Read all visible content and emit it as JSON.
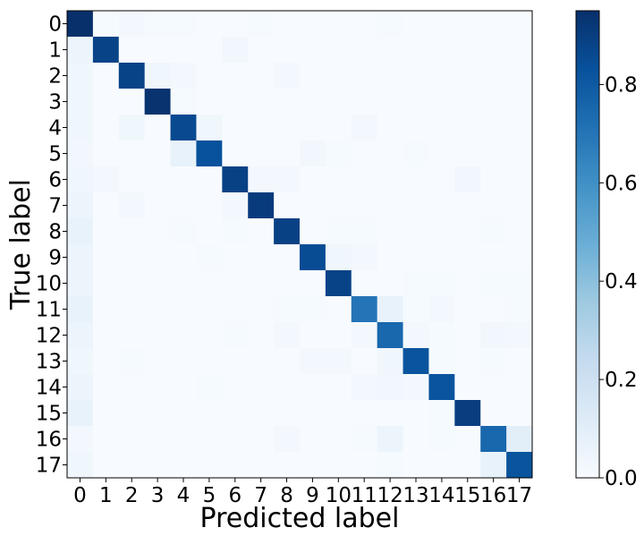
{
  "chart_data": {
    "type": "heatmap",
    "title": "",
    "xlabel": "Predicted label",
    "ylabel": "True label",
    "x_categories": [
      "0",
      "1",
      "2",
      "3",
      "4",
      "5",
      "6",
      "7",
      "8",
      "9",
      "10",
      "11",
      "12",
      "13",
      "14",
      "15",
      "16",
      "17"
    ],
    "y_categories": [
      "0",
      "1",
      "2",
      "3",
      "4",
      "5",
      "6",
      "7",
      "8",
      "9",
      "10",
      "11",
      "12",
      "13",
      "14",
      "15",
      "16",
      "17"
    ],
    "matrix": [
      [
        0.95,
        0.01,
        0.02,
        0.01,
        0.01,
        0.0,
        0.0,
        0.01,
        0.0,
        0.0,
        0.0,
        0.0,
        0.01,
        0.0,
        0.0,
        0.0,
        0.0,
        0.0
      ],
      [
        0.05,
        0.88,
        0.0,
        0.0,
        0.0,
        0.0,
        0.03,
        0.0,
        0.0,
        0.0,
        0.0,
        0.0,
        0.0,
        0.0,
        0.0,
        0.0,
        0.0,
        0.0
      ],
      [
        0.04,
        0.0,
        0.88,
        0.04,
        0.02,
        0.0,
        0.0,
        0.0,
        0.02,
        0.0,
        0.0,
        0.0,
        0.0,
        0.0,
        0.0,
        0.0,
        0.0,
        0.0
      ],
      [
        0.04,
        0.0,
        0.0,
        0.94,
        0.01,
        0.0,
        0.0,
        0.0,
        0.0,
        0.0,
        0.0,
        0.0,
        0.0,
        0.0,
        0.0,
        0.0,
        0.0,
        0.0
      ],
      [
        0.04,
        0.0,
        0.04,
        0.0,
        0.86,
        0.04,
        0.0,
        0.0,
        0.0,
        0.0,
        0.0,
        0.02,
        0.0,
        0.0,
        0.0,
        0.0,
        0.0,
        0.0
      ],
      [
        0.03,
        0.0,
        0.0,
        0.0,
        0.07,
        0.83,
        0.0,
        0.0,
        0.0,
        0.03,
        0.01,
        0.0,
        0.0,
        0.01,
        0.0,
        0.0,
        0.0,
        0.0
      ],
      [
        0.04,
        0.02,
        0.0,
        0.0,
        0.0,
        0.0,
        0.89,
        0.02,
        0.02,
        0.0,
        0.0,
        0.0,
        0.0,
        0.0,
        0.0,
        0.03,
        0.0,
        0.0
      ],
      [
        0.05,
        0.0,
        0.02,
        0.0,
        0.0,
        0.0,
        0.02,
        0.91,
        0.0,
        0.0,
        0.0,
        0.0,
        0.0,
        0.0,
        0.0,
        0.0,
        0.0,
        0.0
      ],
      [
        0.07,
        0.0,
        0.0,
        0.0,
        0.01,
        0.0,
        0.01,
        0.0,
        0.89,
        0.0,
        0.01,
        0.01,
        0.0,
        0.0,
        0.0,
        0.0,
        0.01,
        0.0
      ],
      [
        0.05,
        0.0,
        0.0,
        0.0,
        0.0,
        0.01,
        0.0,
        0.0,
        0.0,
        0.85,
        0.04,
        0.02,
        0.0,
        0.0,
        0.0,
        0.0,
        0.0,
        0.0
      ],
      [
        0.05,
        0.0,
        0.0,
        0.0,
        0.0,
        0.0,
        0.0,
        0.0,
        0.0,
        0.0,
        0.88,
        0.0,
        0.0,
        0.01,
        0.01,
        0.0,
        0.01,
        0.01
      ],
      [
        0.07,
        0.0,
        0.0,
        0.0,
        0.0,
        0.0,
        0.0,
        0.0,
        0.01,
        0.01,
        0.0,
        0.7,
        0.07,
        0.01,
        0.02,
        0.0,
        0.0,
        0.01
      ],
      [
        0.05,
        0.0,
        0.0,
        0.0,
        0.0,
        0.0,
        0.01,
        0.0,
        0.02,
        0.0,
        0.0,
        0.02,
        0.75,
        0.02,
        0.01,
        0.0,
        0.03,
        0.02
      ],
      [
        0.04,
        0.0,
        0.01,
        0.0,
        0.0,
        0.0,
        0.0,
        0.0,
        0.0,
        0.02,
        0.02,
        0.0,
        0.04,
        0.82,
        0.01,
        0.0,
        0.01,
        0.0
      ],
      [
        0.05,
        0.0,
        0.0,
        0.0,
        0.0,
        0.01,
        0.0,
        0.0,
        0.0,
        0.0,
        0.0,
        0.02,
        0.03,
        0.02,
        0.82,
        0.0,
        0.0,
        0.0
      ],
      [
        0.07,
        0.0,
        0.0,
        0.0,
        0.0,
        0.0,
        0.0,
        0.0,
        0.0,
        0.0,
        0.0,
        0.0,
        0.0,
        0.0,
        0.01,
        0.9,
        0.0,
        0.0
      ],
      [
        0.02,
        0.0,
        0.0,
        0.0,
        0.0,
        0.0,
        0.0,
        0.0,
        0.02,
        0.0,
        0.0,
        0.01,
        0.05,
        0.0,
        0.01,
        0.0,
        0.75,
        0.1
      ],
      [
        0.04,
        0.0,
        0.0,
        0.0,
        0.0,
        0.0,
        0.0,
        0.0,
        0.0,
        0.0,
        0.0,
        0.0,
        0.01,
        0.0,
        0.0,
        0.0,
        0.07,
        0.82
      ]
    ],
    "colorbar": {
      "range": [
        0,
        0.95
      ],
      "ticks": [
        0.0,
        0.2,
        0.4,
        0.6,
        0.8
      ],
      "tick_labels": [
        "0.0",
        "0.2",
        "0.4",
        "0.6",
        "0.8"
      ]
    },
    "colormap": "Blues",
    "colors": [
      "#f7fbff",
      "#deebf7",
      "#c6dbef",
      "#9ecae1",
      "#6baed6",
      "#4292c6",
      "#2171b5",
      "#08519c",
      "#08306b"
    ],
    "grid": false,
    "legend": "colorbar-right"
  }
}
